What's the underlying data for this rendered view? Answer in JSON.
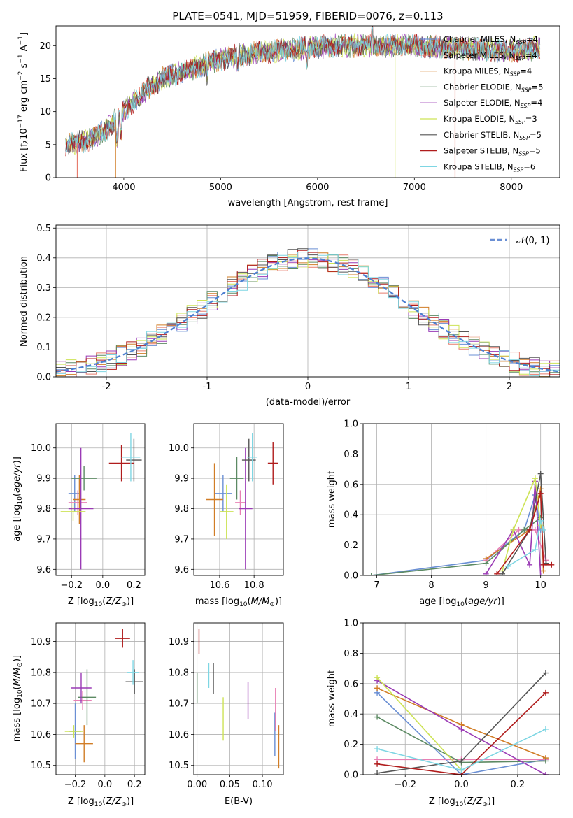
{
  "figure": {
    "title": "PLATE=0541, MJD=51959, FIBERID=0076, z=0.113"
  },
  "colors": {
    "Chabrier MILES": "#6a8fd4",
    "Salpeter MILES": "#e77c6d",
    "Kroupa MILES": "#d17d26",
    "Chabrier ELODIE": "#5c8a63",
    "Salpeter ELODIE": "#9a3ab5",
    "Kroupa ELODIE": "#cde356",
    "Chabrier STELIB": "#555555",
    "Salpeter STELIB": "#b01c1c",
    "Kroupa STELIB": "#7ed6e3",
    "Pink": "#e87fb4",
    "Gaussian": "#4c7fd1"
  },
  "chart_data": [
    {
      "type": "line",
      "title": "PLATE=0541, MJD=51959, FIBERID=0076, z=0.113",
      "xlabel": "wavelength [Angstrom, rest frame]",
      "ylabel": "Flux [f_λ 10^-17 erg cm^-2 s^-1 A^-1]",
      "ylabel_parts": {
        "a": "Flux [f",
        "b": "λ",
        "c": "10",
        "d": "−17",
        "e": " erg cm",
        "f": "−2",
        "g": " s",
        "h": "−1",
        "i": " A",
        "j": "−1",
        "k": "]"
      },
      "xlim": [
        3300,
        8500
      ],
      "ylim": [
        0,
        23
      ],
      "xticks": [
        4000,
        5000,
        6000,
        7000,
        8000
      ],
      "yticks": [
        0,
        5,
        10,
        15,
        20
      ],
      "legend_position": "upper-right",
      "series": [
        {
          "name": "Chabrier MILES, N_SSP=4",
          "label": "Chabrier MILES, N",
          "sub": "SSP",
          "tail": "=4",
          "color_key": "Chabrier MILES"
        },
        {
          "name": "Salpeter MILES, N_SSP=4",
          "label": "Salpeter MILES, N",
          "sub": "SSP",
          "tail": "=4",
          "color_key": "Salpeter MILES"
        },
        {
          "name": "Kroupa MILES, N_SSP=4",
          "label": "Kroupa MILES, N",
          "sub": "SSP",
          "tail": "=4",
          "color_key": "Kroupa MILES"
        },
        {
          "name": "Chabrier ELODIE, N_SSP=5",
          "label": "Chabrier ELODIE, N",
          "sub": "SSP",
          "tail": "=5",
          "color_key": "Chabrier ELODIE"
        },
        {
          "name": "Salpeter ELODIE, N_SSP=4",
          "label": "Salpeter ELODIE, N",
          "sub": "SSP",
          "tail": "=4",
          "color_key": "Salpeter ELODIE"
        },
        {
          "name": "Kroupa ELODIE, N_SSP=3",
          "label": "Kroupa ELODIE, N",
          "sub": "SSP",
          "tail": "=3",
          "color_key": "Kroupa ELODIE"
        },
        {
          "name": "Chabrier STELIB, N_SSP=5",
          "label": "Chabrier STELIB, N",
          "sub": "SSP",
          "tail": "=5",
          "color_key": "Chabrier STELIB"
        },
        {
          "name": "Salpeter STELIB, N_SSP=5",
          "label": "Salpeter STELIB, N",
          "sub": "SSP",
          "tail": "=5",
          "color_key": "Salpeter STELIB"
        },
        {
          "name": "Kroupa STELIB, N_SSP=6",
          "label": "Kroupa STELIB, N",
          "sub": "SSP",
          "tail": "=6",
          "color_key": "Kroupa STELIB"
        }
      ],
      "continuum": {
        "x": [
          3400,
          3600,
          3800,
          4000,
          4200,
          4400,
          4600,
          4800,
          5000,
          5200,
          5400,
          5600,
          5800,
          6000,
          6200,
          6400,
          6600,
          6800,
          7000,
          7200,
          7400,
          7600,
          7800,
          8000,
          8200,
          8300
        ],
        "y": [
          5,
          5.5,
          7,
          10,
          13,
          15,
          16,
          17,
          18,
          18.5,
          19,
          19.3,
          19.6,
          19.8,
          20,
          20,
          20,
          20,
          20,
          19.8,
          19.7,
          19.5,
          19.3,
          19.2,
          19.5,
          19.8
        ]
      },
      "drop_lines": [
        {
          "x": 3520,
          "color_key": "Salpeter MILES"
        },
        {
          "x": 3915,
          "color_key": "Kroupa MILES"
        },
        {
          "x": 6800,
          "color_key": "Kroupa ELODIE"
        },
        {
          "x": 7420,
          "color_key": "Salpeter MILES"
        }
      ]
    },
    {
      "type": "bar",
      "xlabel": "(data-model)/error",
      "ylabel": "Normed distribution",
      "xlim": [
        -2.5,
        2.5
      ],
      "ylim": [
        0,
        0.51
      ],
      "xticks": [
        -2,
        -1,
        0,
        1,
        2
      ],
      "yticks": [
        0.0,
        0.1,
        0.2,
        0.3,
        0.4,
        0.5
      ],
      "grid": true,
      "legend_position": "upper-right",
      "gaussian_label": "𝒩(0, 1)",
      "bin_width": 0.1,
      "histograms": [
        {
          "color_key": "Chabrier MILES",
          "seed": 1
        },
        {
          "color_key": "Salpeter MILES",
          "seed": 2
        },
        {
          "color_key": "Kroupa MILES",
          "seed": 3
        },
        {
          "color_key": "Chabrier ELODIE",
          "seed": 4
        },
        {
          "color_key": "Salpeter ELODIE",
          "seed": 5
        },
        {
          "color_key": "Kroupa ELODIE",
          "seed": 6
        },
        {
          "color_key": "Chabrier STELIB",
          "seed": 7
        },
        {
          "color_key": "Salpeter STELIB",
          "seed": 8
        },
        {
          "color_key": "Kroupa STELIB",
          "seed": 9
        }
      ]
    },
    {
      "type": "scatter",
      "xlabel": "Z [log10(Z/Z⊙)]",
      "xlabel_parts": {
        "a": "Z [log",
        "b": "10",
        "c": "(",
        "d": "Z/Z",
        "e": "⊙",
        "f": ")]"
      },
      "ylabel": "age [log10(age/yr)]",
      "ylabel_parts": {
        "a": "age  [log",
        "b": "10",
        "c": "(",
        "d": "age/yr",
        "e": ")]"
      },
      "xlim": [
        -0.3,
        0.27
      ],
      "ylim": [
        9.58,
        10.08
      ],
      "xticks": [
        -0.2,
        0.0,
        0.2
      ],
      "xtick_labels": [
        "−0.2",
        "0.0",
        "0.2"
      ],
      "yticks": [
        9.6,
        9.7,
        9.8,
        9.9,
        10.0
      ],
      "grid": true,
      "points": [
        {
          "x": -0.18,
          "y": 9.85,
          "xerr": 0.04,
          "yerr": 0.06,
          "color_key": "Chabrier MILES"
        },
        {
          "x": -0.16,
          "y": 9.82,
          "xerr": 0.06,
          "yerr": 0.04,
          "color_key": "Pink"
        },
        {
          "x": -0.15,
          "y": 9.83,
          "xerr": 0.04,
          "yerr": 0.08,
          "color_key": "Kroupa MILES"
        },
        {
          "x": -0.12,
          "y": 9.9,
          "xerr": 0.08,
          "yerr": 0.04,
          "color_key": "Chabrier ELODIE"
        },
        {
          "x": -0.14,
          "y": 9.8,
          "xerr": 0.08,
          "yerr": 0.2,
          "color_key": "Salpeter ELODIE"
        },
        {
          "x": -0.19,
          "y": 9.79,
          "xerr": 0.08,
          "yerr": 0.03,
          "color_key": "Kroupa ELODIE"
        },
        {
          "x": 0.2,
          "y": 9.96,
          "xerr": 0.05,
          "yerr": 0.07,
          "color_key": "Chabrier STELIB"
        },
        {
          "x": 0.12,
          "y": 9.95,
          "xerr": 0.08,
          "yerr": 0.06,
          "color_key": "Salpeter STELIB"
        },
        {
          "x": 0.18,
          "y": 9.97,
          "xerr": 0.06,
          "yerr": 0.08,
          "color_key": "Kroupa STELIB"
        }
      ]
    },
    {
      "type": "scatter",
      "xlabel": "mass [log10(M/M⊙)]",
      "xlabel_parts": {
        "a": "mass [log",
        "b": "10",
        "c": "(",
        "d": "M/M",
        "e": "⊙",
        "f": ")]"
      },
      "xlim": [
        10.45,
        10.97
      ],
      "ylim": [
        9.58,
        10.08
      ],
      "xticks": [
        10.6,
        10.8
      ],
      "xtick_labels": [
        "10.6",
        "10.8"
      ],
      "yticks": [
        9.6,
        9.7,
        9.8,
        9.9,
        10.0
      ],
      "grid": true,
      "points": [
        {
          "x": 10.62,
          "y": 9.85,
          "xerr": 0.05,
          "yerr": 0.06,
          "color_key": "Chabrier MILES"
        },
        {
          "x": 10.72,
          "y": 9.82,
          "xerr": 0.03,
          "yerr": 0.04,
          "color_key": "Pink"
        },
        {
          "x": 10.57,
          "y": 9.83,
          "xerr": 0.05,
          "yerr": 0.12,
          "color_key": "Kroupa MILES"
        },
        {
          "x": 10.7,
          "y": 9.9,
          "xerr": 0.04,
          "yerr": 0.07,
          "color_key": "Chabrier ELODIE"
        },
        {
          "x": 10.75,
          "y": 9.8,
          "xerr": 0.04,
          "yerr": 0.2,
          "color_key": "Salpeter ELODIE"
        },
        {
          "x": 10.64,
          "y": 9.79,
          "xerr": 0.04,
          "yerr": 0.09,
          "color_key": "Kroupa ELODIE"
        },
        {
          "x": 10.77,
          "y": 9.96,
          "xerr": 0.04,
          "yerr": 0.07,
          "color_key": "Chabrier STELIB"
        },
        {
          "x": 10.91,
          "y": 9.95,
          "xerr": 0.03,
          "yerr": 0.07,
          "color_key": "Salpeter STELIB"
        },
        {
          "x": 10.79,
          "y": 9.97,
          "xerr": 0.03,
          "yerr": 0.08,
          "color_key": "Kroupa STELIB"
        }
      ]
    },
    {
      "type": "line",
      "xlabel": "age [log10(age/yr)]",
      "xlabel_parts": {
        "a": "age  [log",
        "b": "10",
        "c": "(",
        "d": "age/yr",
        "e": ")]"
      },
      "ylabel": "mass weight",
      "xlim": [
        6.75,
        10.35
      ],
      "ylim": [
        0,
        1.0
      ],
      "xticks": [
        7,
        8,
        9,
        10
      ],
      "yticks": [
        0.0,
        0.2,
        0.4,
        0.6,
        0.8,
        1.0
      ],
      "grid": true,
      "series": [
        {
          "color_key": "Chabrier MILES",
          "x": [
            6.9,
            9.0,
            9.7,
            9.9,
            10.0
          ],
          "y": [
            0.0,
            0.1,
            0.3,
            0.53,
            0.3
          ]
        },
        {
          "color_key": "Pink",
          "x": [
            9.0,
            9.6,
            9.9,
            10.1
          ],
          "y": [
            0.1,
            0.3,
            0.3,
            0.1
          ]
        },
        {
          "color_key": "Kroupa MILES",
          "x": [
            9.0,
            9.8,
            10.0,
            10.05
          ],
          "y": [
            0.11,
            0.3,
            0.57,
            0.03
          ]
        },
        {
          "color_key": "Chabrier ELODIE",
          "x": [
            6.9,
            9.0,
            9.7,
            10.0
          ],
          "y": [
            0.0,
            0.08,
            0.3,
            0.38
          ]
        },
        {
          "color_key": "Salpeter ELODIE",
          "x": [
            9.0,
            9.5,
            9.8,
            9.9,
            10.0
          ],
          "y": [
            0.01,
            0.3,
            0.07,
            0.62,
            0.0
          ]
        },
        {
          "color_key": "Kroupa ELODIE",
          "x": [
            9.3,
            9.5,
            9.9,
            10.0
          ],
          "y": [
            0.03,
            0.3,
            0.64,
            0.33
          ]
        },
        {
          "color_key": "Chabrier STELIB",
          "x": [
            9.3,
            9.8,
            10.0,
            10.1
          ],
          "y": [
            0.01,
            0.3,
            0.67,
            0.08
          ]
        },
        {
          "color_key": "Salpeter STELIB",
          "x": [
            9.2,
            9.8,
            10.0,
            10.05,
            10.2
          ],
          "y": [
            0.01,
            0.3,
            0.54,
            0.07,
            0.07
          ]
        },
        {
          "color_key": "Kroupa STELIB",
          "x": [
            9.4,
            9.9,
            10.0,
            10.05
          ],
          "y": [
            0.06,
            0.17,
            0.36,
            0.3
          ]
        }
      ]
    },
    {
      "type": "scatter",
      "xlabel": "Z [log10(Z/Z⊙)]",
      "xlabel_parts": {
        "a": "Z [log",
        "b": "10",
        "c": "(",
        "d": "Z/Z",
        "e": "⊙",
        "f": ")]"
      },
      "ylabel": "mass [log10(M/M⊙)]",
      "ylabel_parts": {
        "a": "mass [log",
        "b": "10",
        "c": "(",
        "d": "M/M",
        "e": "⊙",
        "f": ")]"
      },
      "xlim": [
        -0.33,
        0.27
      ],
      "ylim": [
        10.47,
        10.96
      ],
      "xticks": [
        -0.2,
        0.0,
        0.2
      ],
      "xtick_labels": [
        "−0.2",
        "0.0",
        "0.2"
      ],
      "yticks": [
        10.5,
        10.6,
        10.7,
        10.8,
        10.9
      ],
      "grid": true,
      "points": [
        {
          "x": -0.2,
          "y": 10.61,
          "xerr": 0.04,
          "yerr": 0.09,
          "color_key": "Chabrier MILES"
        },
        {
          "x": -0.15,
          "y": 10.71,
          "xerr": 0.06,
          "yerr": 0.03,
          "color_key": "Pink"
        },
        {
          "x": -0.14,
          "y": 10.57,
          "xerr": 0.06,
          "yerr": 0.06,
          "color_key": "Kroupa MILES"
        },
        {
          "x": -0.12,
          "y": 10.72,
          "xerr": 0.06,
          "yerr": 0.09,
          "color_key": "Chabrier ELODIE"
        },
        {
          "x": -0.16,
          "y": 10.75,
          "xerr": 0.07,
          "yerr": 0.05,
          "color_key": "Salpeter ELODIE"
        },
        {
          "x": -0.21,
          "y": 10.61,
          "xerr": 0.06,
          "yerr": 0.02,
          "color_key": "Kroupa ELODIE"
        },
        {
          "x": 0.2,
          "y": 10.77,
          "xerr": 0.06,
          "yerr": 0.04,
          "color_key": "Chabrier STELIB"
        },
        {
          "x": 0.12,
          "y": 10.91,
          "xerr": 0.05,
          "yerr": 0.03,
          "color_key": "Salpeter STELIB"
        },
        {
          "x": 0.19,
          "y": 10.8,
          "xerr": 0.04,
          "yerr": 0.04,
          "color_key": "Kroupa STELIB"
        }
      ]
    },
    {
      "type": "scatter",
      "xlabel": "E(B-V)",
      "xlim": [
        -0.005,
        0.132
      ],
      "ylim": [
        10.47,
        10.96
      ],
      "xticks": [
        0.0,
        0.05,
        0.1
      ],
      "xtick_labels": [
        "0.00",
        "0.05",
        "0.10"
      ],
      "yticks": [
        10.5,
        10.6,
        10.7,
        10.8,
        10.9
      ],
      "grid": true,
      "points": [
        {
          "x": 0.119,
          "y": 10.6,
          "yerr": 0.07,
          "color_key": "Chabrier MILES"
        },
        {
          "x": 0.12,
          "y": 10.68,
          "yerr": 0.07,
          "color_key": "Pink"
        },
        {
          "x": 0.125,
          "y": 10.56,
          "yerr": 0.07,
          "color_key": "Kroupa MILES"
        },
        {
          "x": 0.0,
          "y": 10.75,
          "yerr": 0.05,
          "color_key": "Chabrier ELODIE"
        },
        {
          "x": 0.078,
          "y": 10.71,
          "yerr": 0.06,
          "color_key": "Salpeter ELODIE"
        },
        {
          "x": 0.04,
          "y": 10.65,
          "yerr": 0.07,
          "color_key": "Kroupa ELODIE"
        },
        {
          "x": 0.025,
          "y": 10.78,
          "yerr": 0.05,
          "color_key": "Chabrier STELIB"
        },
        {
          "x": 0.003,
          "y": 10.9,
          "yerr": 0.04,
          "color_key": "Salpeter STELIB"
        },
        {
          "x": 0.018,
          "y": 10.79,
          "yerr": 0.04,
          "color_key": "Kroupa STELIB"
        }
      ]
    },
    {
      "type": "line",
      "xlabel": "Z [log10(Z/Z⊙)]",
      "xlabel_parts": {
        "a": "Z [log",
        "b": "10",
        "c": "(",
        "d": "Z/Z",
        "e": "⊙",
        "f": ")]"
      },
      "ylabel": "mass weight",
      "xlim": [
        -0.35,
        0.35
      ],
      "ylim": [
        0,
        1.0
      ],
      "xticks": [
        -0.2,
        0.0,
        0.2
      ],
      "xtick_labels": [
        "−0.2",
        "0.0",
        "0.2"
      ],
      "yticks": [
        0.0,
        0.2,
        0.4,
        0.6,
        0.8,
        1.0
      ],
      "grid": true,
      "series": [
        {
          "color_key": "Chabrier MILES",
          "x": [
            -0.3,
            0.0,
            0.3
          ],
          "y": [
            0.54,
            0.0,
            0.1
          ]
        },
        {
          "color_key": "Pink",
          "x": [
            -0.3,
            0.0,
            0.3
          ],
          "y": [
            0.1,
            0.1,
            0.1
          ]
        },
        {
          "color_key": "Kroupa MILES",
          "x": [
            -0.3,
            0.0,
            0.3
          ],
          "y": [
            0.57,
            0.33,
            0.11
          ]
        },
        {
          "color_key": "Chabrier ELODIE",
          "x": [
            -0.3,
            0.0,
            0.3
          ],
          "y": [
            0.38,
            0.08,
            0.09
          ]
        },
        {
          "color_key": "Salpeter ELODIE",
          "x": [
            -0.3,
            0.0,
            0.3
          ],
          "y": [
            0.62,
            0.3,
            0.0
          ]
        },
        {
          "color_key": "Kroupa ELODIE",
          "x": [
            -0.3,
            0.0
          ],
          "y": [
            0.64,
            0.03
          ]
        },
        {
          "color_key": "Chabrier STELIB",
          "x": [
            -0.3,
            0.0,
            0.3
          ],
          "y": [
            0.01,
            0.09,
            0.67
          ]
        },
        {
          "color_key": "Salpeter STELIB",
          "x": [
            -0.3,
            0.0,
            0.3
          ],
          "y": [
            0.07,
            0.0,
            0.54
          ]
        },
        {
          "color_key": "Kroupa STELIB",
          "x": [
            -0.3,
            0.0,
            0.3
          ],
          "y": [
            0.17,
            0.03,
            0.3
          ]
        }
      ]
    }
  ]
}
